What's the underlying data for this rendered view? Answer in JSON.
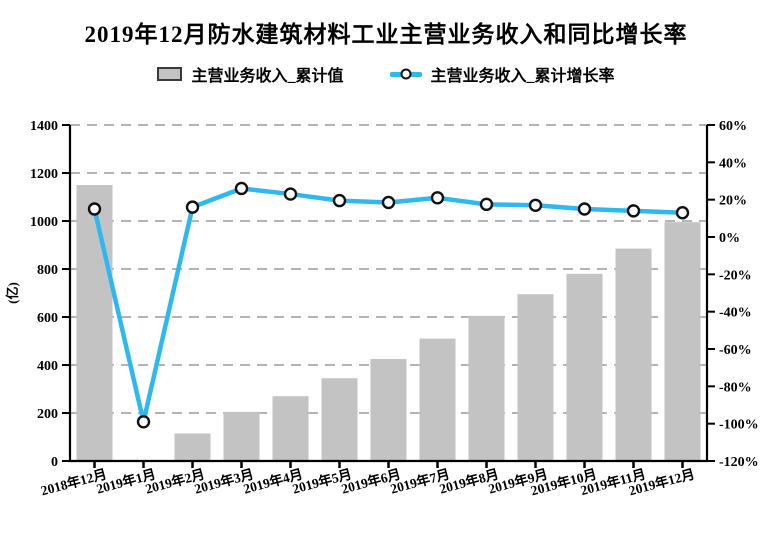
{
  "title": "2019年12月防水建筑材料工业主营业务收入和同比增长率",
  "legend": {
    "bar": {
      "label": "主营业务收入_累计值"
    },
    "line": {
      "label": "主营业务收入_累计增长率"
    }
  },
  "colors": {
    "background": "#ffffff",
    "bar_fill": "#c3c3c3",
    "legend_box_border": "#3a3a3a",
    "line": "#2db9f0",
    "marker_fill": "#ffffff",
    "marker_stroke": "#111111",
    "grid": "#aaaaaa",
    "axis": "#000000",
    "text": "#000000"
  },
  "chart_data": {
    "type": "bar+line",
    "title": "2019年12月防水建筑材料工业主营业务收入和同比增长率",
    "categories": [
      "2018年12月",
      "2019年1月",
      "2019年2月",
      "2019年3月",
      "2019年4月",
      "2019年5月",
      "2019年6月",
      "2019年7月",
      "2019年8月",
      "2019年9月",
      "2019年10月",
      "2019年11月",
      "2019年12月"
    ],
    "series": [
      {
        "name": "主营业务收入_累计值",
        "type": "bar",
        "yaxis": "left",
        "unit": "亿",
        "values": [
          1150,
          null,
          115,
          205,
          270,
          345,
          425,
          510,
          605,
          695,
          780,
          885,
          995
        ]
      },
      {
        "name": "主营业务收入_累计增长率",
        "type": "line",
        "yaxis": "right",
        "unit": "%",
        "values": [
          15,
          -99,
          16,
          26,
          23,
          19.5,
          18.5,
          21,
          17.5,
          17,
          15,
          14,
          13
        ]
      }
    ],
    "left_axis": {
      "label": "(亿)",
      "min": 0,
      "max": 1400,
      "step": 200,
      "tick_labels": [
        "0",
        "200",
        "400",
        "600",
        "800",
        "1000",
        "1200",
        "1400"
      ]
    },
    "right_axis": {
      "min": -120,
      "max": 60,
      "step": 20,
      "tick_labels": [
        "-120%",
        "-100%",
        "-80%",
        "-60%",
        "-40%",
        "-20%",
        "0%",
        "20%",
        "40%",
        "60%"
      ]
    },
    "grid": {
      "horizontal": true,
      "style": "dashed",
      "follows": "left_axis"
    },
    "legend_position": "top",
    "x_label_rotation_deg": -15
  }
}
